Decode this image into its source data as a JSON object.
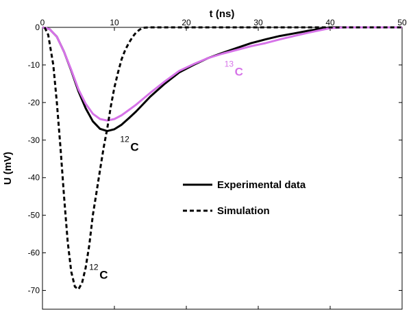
{
  "chart_data": {
    "type": "line",
    "xlabel": "t (ns)",
    "ylabel": "U (mV)",
    "xlim": [
      0,
      50
    ],
    "ylim": [
      -75,
      0
    ],
    "xaxis_position": "top",
    "x_ticks": [
      0,
      10,
      20,
      30,
      40,
      50
    ],
    "y_ticks": [
      0,
      -10,
      -20,
      -30,
      -40,
      -50,
      -60,
      -70
    ],
    "grid": false,
    "series": [
      {
        "name": "Experimental data",
        "label": "12C",
        "style": "solid",
        "color": "#000000",
        "x": [
          0,
          0.5,
          1,
          2,
          3,
          4,
          5,
          6,
          7,
          8,
          9,
          10,
          11,
          12,
          13,
          14,
          15,
          17,
          19,
          21,
          23,
          25,
          27,
          29,
          31,
          33,
          35,
          37,
          39,
          40,
          42,
          44,
          46,
          48,
          50
        ],
        "y": [
          0,
          -0.2,
          -0.5,
          -2.5,
          -6.5,
          -11.5,
          -17,
          -21.5,
          -25,
          -27,
          -27.6,
          -27.1,
          -25.9,
          -24.2,
          -22.4,
          -20.4,
          -18.4,
          -15,
          -12,
          -10,
          -8.2,
          -6.8,
          -5.5,
          -4.2,
          -3.2,
          -2.3,
          -1.6,
          -0.9,
          -0.3,
          0,
          0,
          0,
          0,
          0,
          0
        ]
      },
      {
        "name": "13C experimental data",
        "label": "13C",
        "style": "solid",
        "color": "#d673e8",
        "x": [
          0,
          0.5,
          1,
          2,
          3,
          4,
          5,
          6,
          7,
          8,
          9,
          10,
          11,
          12,
          13,
          14,
          15,
          17,
          19,
          21,
          23,
          25,
          27,
          29,
          31,
          33,
          35,
          37,
          39,
          40,
          42,
          44,
          46,
          48,
          50
        ],
        "y": [
          0,
          -0.2,
          -0.5,
          -2.5,
          -6.5,
          -11.3,
          -16.5,
          -20.3,
          -23,
          -24.4,
          -24.8,
          -24.4,
          -23.4,
          -22,
          -20.6,
          -19,
          -17.4,
          -14.4,
          -11.6,
          -9.8,
          -8.2,
          -7,
          -6,
          -5,
          -4.2,
          -3.2,
          -2.3,
          -1.4,
          -0.6,
          -0.2,
          0,
          0,
          0,
          0,
          0
        ]
      },
      {
        "name": "Simulation",
        "label": "12C",
        "style": "dashed",
        "color": "#000000",
        "x": [
          0.3,
          0.8,
          1.5,
          2,
          2.5,
          3,
          3.5,
          4,
          4.5,
          5,
          5.5,
          6,
          6.5,
          7,
          7.5,
          8,
          8.5,
          9,
          9.5,
          10,
          10.5,
          11,
          11.5,
          12,
          12.5,
          13,
          13.5,
          14,
          15,
          20,
          30,
          40,
          50
        ],
        "y": [
          0,
          -2,
          -10,
          -20,
          -32,
          -45,
          -57,
          -65,
          -69,
          -69.7,
          -68,
          -64,
          -58,
          -50,
          -44,
          -38,
          -32,
          -27,
          -21,
          -16,
          -12,
          -8.5,
          -6,
          -4.2,
          -2.6,
          -1.4,
          -0.6,
          -0.1,
          0,
          0,
          0,
          0,
          0
        ]
      }
    ],
    "legend": {
      "placement": "center-right",
      "entries": [
        {
          "label": "Experimental data",
          "style": "solid"
        },
        {
          "label": "Simulation",
          "style": "dashed"
        }
      ]
    },
    "annotations": [
      {
        "sup": "12",
        "text": "C",
        "color": "#000000",
        "x": 10.8,
        "y": -30.5
      },
      {
        "sup": "13",
        "text": "C",
        "color": "#d673e8",
        "x": 25.3,
        "y": -10.5
      },
      {
        "sup": "12",
        "text": "C",
        "color": "#000000",
        "x": 6.5,
        "y": -64.5
      }
    ]
  }
}
